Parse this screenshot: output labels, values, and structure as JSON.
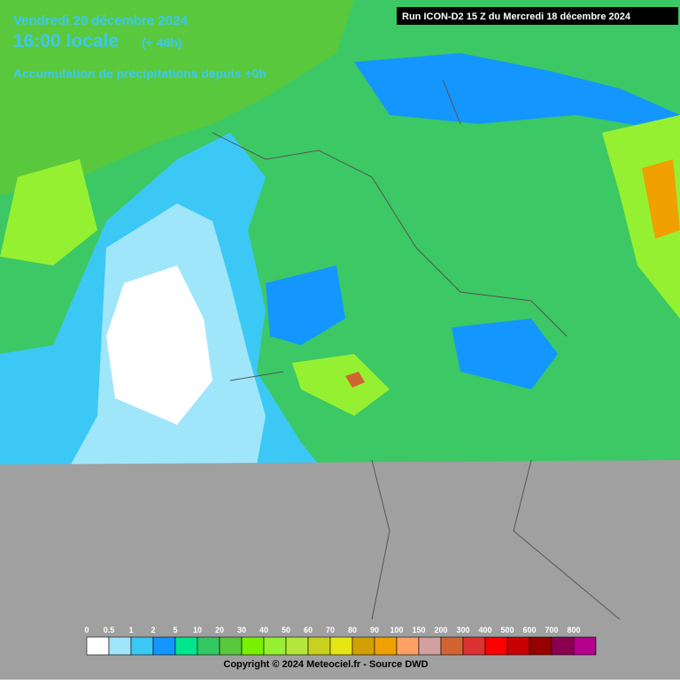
{
  "header": {
    "date": "Vendredi 20 décembre 2024",
    "time": "16:00 locale",
    "offset": "(+ 48h)",
    "subtitle": "Accumulation de précipitations depuis +0h",
    "run": "Run ICON-D2 15 Z du Mercredi 18 décembre 2024"
  },
  "legend": [
    {
      "label": "0",
      "color": "#ffffff"
    },
    {
      "label": "0.5",
      "color": "#a0e6fa"
    },
    {
      "label": "1",
      "color": "#3cc8f5"
    },
    {
      "label": "2",
      "color": "#1496ff"
    },
    {
      "label": "5",
      "color": "#00e68c"
    },
    {
      "label": "10",
      "color": "#32c864"
    },
    {
      "label": "20",
      "color": "#5ac83c"
    },
    {
      "label": "30",
      "color": "#78f000"
    },
    {
      "label": "40",
      "color": "#96f032"
    },
    {
      "label": "50",
      "color": "#b4e63c"
    },
    {
      "label": "60",
      "color": "#c8d21e"
    },
    {
      "label": "70",
      "color": "#e6e614"
    },
    {
      "label": "80",
      "color": "#d2a000"
    },
    {
      "label": "90",
      "color": "#f0a000"
    },
    {
      "label": "100",
      "color": "#ffa064"
    },
    {
      "label": "150",
      "color": "#d2a0a0"
    },
    {
      "label": "200",
      "color": "#d26432"
    },
    {
      "label": "300",
      "color": "#dc3232"
    },
    {
      "label": "400",
      "color": "#ff0000"
    },
    {
      "label": "500",
      "color": "#c80000"
    },
    {
      "label": "600",
      "color": "#960000"
    },
    {
      "label": "700",
      "color": "#8c0050"
    },
    {
      "label": "800",
      "color": "#b4008c"
    }
  ],
  "footer": "Copyright © 2024 Meteociel.fr - Source DWD"
}
